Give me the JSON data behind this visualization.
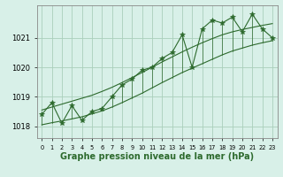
{
  "title": "Graphe pression niveau de la mer (hPa)",
  "x_labels": [
    "0",
    "1",
    "2",
    "3",
    "4",
    "5",
    "6",
    "7",
    "8",
    "9",
    "10",
    "11",
    "12",
    "13",
    "14",
    "15",
    "16",
    "17",
    "18",
    "19",
    "20",
    "21",
    "22",
    "23"
  ],
  "hours": [
    0,
    1,
    2,
    3,
    4,
    5,
    6,
    7,
    8,
    9,
    10,
    11,
    12,
    13,
    14,
    15,
    16,
    17,
    18,
    19,
    20,
    21,
    22,
    23
  ],
  "pressure": [
    1018.4,
    1018.8,
    1018.1,
    1018.7,
    1018.2,
    1018.5,
    1018.6,
    1019.0,
    1019.4,
    1019.6,
    1019.9,
    1020.0,
    1020.3,
    1020.5,
    1021.1,
    1020.0,
    1021.3,
    1021.6,
    1021.5,
    1021.7,
    1021.2,
    1021.8,
    1021.3,
    1021.0
  ],
  "smooth_upper": [
    1018.55,
    1018.65,
    1018.75,
    1018.85,
    1018.95,
    1019.05,
    1019.18,
    1019.32,
    1019.48,
    1019.65,
    1019.82,
    1020.0,
    1020.18,
    1020.35,
    1020.52,
    1020.68,
    1020.83,
    1020.97,
    1021.1,
    1021.2,
    1021.28,
    1021.35,
    1021.42,
    1021.48
  ],
  "smooth_lower": [
    1018.05,
    1018.12,
    1018.18,
    1018.25,
    1018.32,
    1018.42,
    1018.52,
    1018.65,
    1018.8,
    1018.96,
    1019.12,
    1019.3,
    1019.48,
    1019.65,
    1019.82,
    1019.97,
    1020.12,
    1020.27,
    1020.42,
    1020.55,
    1020.65,
    1020.75,
    1020.83,
    1020.9
  ],
  "line_color": "#2d6a2d",
  "bg_color": "#d8f0e8",
  "grid_color": "#aacfbb",
  "ylim_min": 1017.6,
  "ylim_max": 1022.1,
  "yticks": [
    1018,
    1019,
    1020,
    1021
  ],
  "title_fontsize": 7.0,
  "marker": "*",
  "marker_size": 4.0,
  "linewidth": 0.8
}
